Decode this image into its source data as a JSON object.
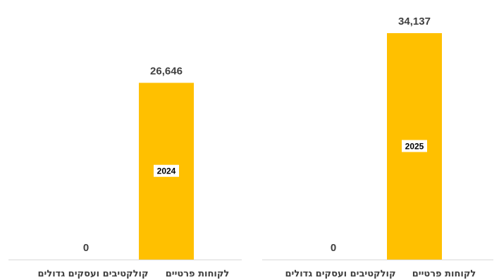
{
  "chart_data": [
    {
      "type": "bar",
      "categories": [
        "קולקטיבים ועסקים גדולים",
        "לקוחות פרטיים"
      ],
      "values": [
        0,
        34137
      ],
      "value_labels": [
        "0",
        "34,137"
      ],
      "inner_label": "2025",
      "ylim": [
        0,
        34137
      ],
      "grid": false,
      "bar_color": "#FFC000"
    },
    {
      "type": "bar",
      "categories": [
        "קולקטיבים ועסקים גדולים",
        "לקוחות פרטיים"
      ],
      "values": [
        0,
        26646
      ],
      "value_labels": [
        "0",
        "26,646"
      ],
      "inner_label": "2024",
      "ylim": [
        0,
        34137
      ],
      "grid": false,
      "bar_color": "#FFC000"
    }
  ]
}
